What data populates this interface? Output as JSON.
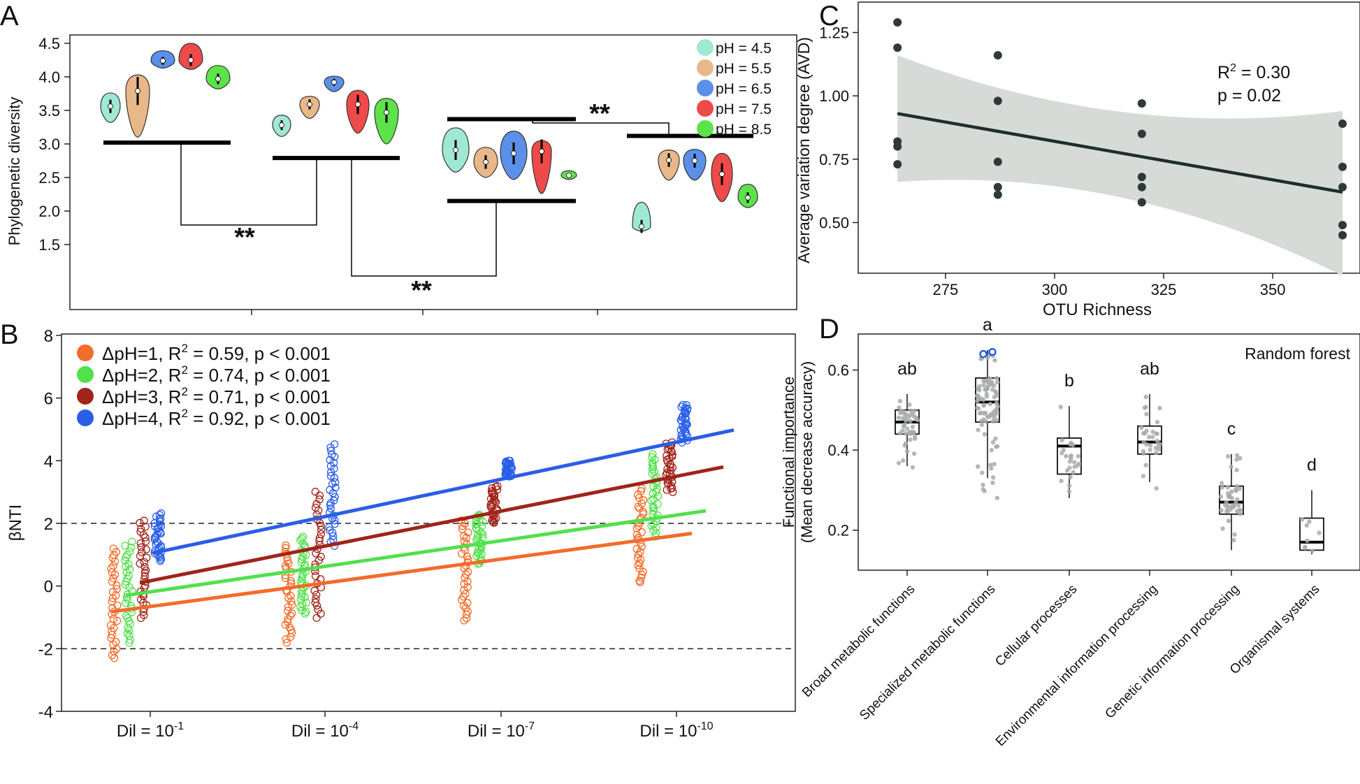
{
  "panels": {
    "A": {
      "label": "A"
    },
    "B": {
      "label": "B"
    },
    "C": {
      "label": "C"
    },
    "D": {
      "label": "D"
    }
  },
  "colors": {
    "ph45": "#9fe8d4",
    "ph55": "#e9b889",
    "ph65": "#5b8fe8",
    "ph75": "#ee4a4a",
    "ph85": "#5ce34a",
    "dph1": "#f26c2a",
    "dph2": "#52e04c",
    "dph3": "#a0241a",
    "dph4": "#2a5ee8",
    "ci_band": "#d7dbd7"
  },
  "chart_data": [
    {
      "id": "A",
      "type": "violin",
      "ylabel": "Phylogenetic diversity",
      "ylim": [
        1.4,
        4.6
      ],
      "yticks": [
        "1.5",
        "2.0",
        "2.5",
        "3.0",
        "3.5",
        "4.0",
        "4.5"
      ],
      "legend": [
        "pH = 4.5",
        "pH = 5.5",
        "pH = 6.5",
        "pH = 7.5",
        "pH = 8.5"
      ],
      "significance": [
        "**",
        "**",
        "**"
      ],
      "groups": [
        {
          "medians": [
            3.56,
            3.79,
            4.24,
            4.25,
            3.97
          ],
          "mins": [
            3.32,
            3.1,
            4.13,
            4.11,
            3.82
          ],
          "maxs": [
            3.76,
            4.03,
            4.39,
            4.5,
            4.17
          ],
          "bar": 3.02
        },
        {
          "medians": [
            3.28,
            3.59,
            3.92,
            3.59,
            3.47
          ],
          "mins": [
            3.11,
            3.38,
            3.78,
            3.16,
            3.0
          ],
          "maxs": [
            3.43,
            3.71,
            4.01,
            3.8,
            3.68
          ],
          "bar": 2.79
        },
        {
          "medians": [
            2.91,
            2.73,
            2.86,
            2.89,
            2.53
          ],
          "mins": [
            2.58,
            2.5,
            2.47,
            2.26,
            2.47
          ],
          "maxs": [
            3.24,
            2.95,
            3.19,
            3.05,
            2.6
          ],
          "bar_top": 3.37,
          "bar_bottom": 2.15
        },
        {
          "medians": [
            1.77,
            2.76,
            2.75,
            2.55,
            2.2
          ],
          "mins": [
            1.7,
            2.46,
            2.46,
            2.14,
            2.05
          ],
          "maxs": [
            2.13,
            2.91,
            2.92,
            2.86,
            2.4
          ],
          "bar": 3.12
        }
      ]
    },
    {
      "id": "B",
      "type": "scatter",
      "ylabel": "βNTI",
      "ylim": [
        -4,
        8
      ],
      "yticks": [
        "-4",
        "-2",
        "0",
        "2",
        "4",
        "6",
        "8"
      ],
      "categories": [
        {
          "base": "Dil = 10",
          "exp": "-1"
        },
        {
          "base": "Dil = 10",
          "exp": "-4"
        },
        {
          "base": "Dil = 10",
          "exp": "-7"
        },
        {
          "base": "Dil = 10",
          "exp": "-10"
        }
      ],
      "reference_lines": [
        -2,
        2
      ],
      "legend": [
        {
          "pre": "ΔpH=1, R",
          "sup": "2",
          "post": " = 0.59, p < 0.001"
        },
        {
          "pre": "ΔpH=2, R",
          "sup": "2",
          "post": " = 0.74, p < 0.001"
        },
        {
          "pre": "ΔpH=3, R",
          "sup": "2",
          "post": " = 0.71, p < 0.001"
        },
        {
          "pre": "ΔpH=4, R",
          "sup": "2",
          "post": " = 0.92, p < 0.001"
        }
      ],
      "series": [
        {
          "name": "ΔpH=1",
          "fit": [
            -0.82,
            1.68
          ],
          "ranges": [
            [
              -2.3,
              1.2
            ],
            [
              -1.8,
              1.3
            ],
            [
              -1.1,
              2.1
            ],
            [
              0.1,
              3.1
            ]
          ]
        },
        {
          "name": "ΔpH=2",
          "fit": [
            -0.3,
            2.4
          ],
          "ranges": [
            [
              -1.8,
              1.4
            ],
            [
              -0.9,
              1.6
            ],
            [
              0.7,
              2.3
            ],
            [
              1.6,
              4.2
            ]
          ]
        },
        {
          "name": "ΔpH=3",
          "fit": [
            0.1,
            3.8
          ],
          "ranges": [
            [
              -1.0,
              2.1
            ],
            [
              -1.0,
              3.0
            ],
            [
              2.0,
              3.2
            ],
            [
              3.0,
              4.6
            ]
          ]
        },
        {
          "name": "ΔpH=4",
          "fit": [
            1.05,
            4.98
          ],
          "ranges": [
            [
              0.8,
              2.3
            ],
            [
              1.3,
              4.5
            ],
            [
              3.5,
              4.0
            ],
            [
              4.6,
              5.8
            ]
          ]
        }
      ]
    },
    {
      "id": "C",
      "type": "scatter",
      "xlabel": "OTU Richness",
      "ylabel": "Average variation degree (AVD)",
      "xlim": [
        255,
        370
      ],
      "ylim": [
        0.3,
        1.37
      ],
      "xticks": [
        "275",
        "300",
        "325",
        "350"
      ],
      "yticks": [
        "0.50",
        "0.75",
        "1.00",
        "1.25"
      ],
      "x": [
        264,
        264,
        264,
        264,
        264,
        287,
        287,
        287,
        287,
        287,
        320,
        320,
        320,
        320,
        320,
        366,
        366,
        366,
        366,
        366
      ],
      "y": [
        1.29,
        1.19,
        0.82,
        0.8,
        0.73,
        1.16,
        0.98,
        0.74,
        0.64,
        0.61,
        0.97,
        0.85,
        0.68,
        0.64,
        0.58,
        0.89,
        0.72,
        0.64,
        0.49,
        0.45
      ],
      "fit": {
        "x": [
          264,
          366
        ],
        "y": [
          0.93,
          0.62
        ]
      },
      "ci": {
        "upper": [
          1.16,
          0.94
        ],
        "lower": [
          0.66,
          0.29
        ]
      },
      "annotation": {
        "r_pre": "R",
        "r_sup": "2",
        "r_post": " = 0.30",
        "p": "p = 0.02"
      }
    },
    {
      "id": "D",
      "type": "boxplot",
      "ylabel_line1": "Functional importance",
      "ylabel_line2": "(Mean decrease accuracy)",
      "ylim": [
        0.1,
        0.69
      ],
      "yticks": [
        "0.2",
        "0.4",
        "0.6"
      ],
      "annotation": "Random forest",
      "categories": [
        "Broad metabolic functions",
        "Specialized metabolic functions",
        "Cellular processes",
        "Environmental information processing",
        "Genetic information processing",
        "Organismal systems"
      ],
      "letters": [
        "ab",
        "a",
        "b",
        "ab",
        "c",
        "d"
      ],
      "boxes": [
        {
          "min": 0.36,
          "q1": 0.44,
          "median": 0.47,
          "q3": 0.5,
          "max": 0.54,
          "n": 45
        },
        {
          "min": 0.33,
          "q1": 0.47,
          "median": 0.52,
          "q3": 0.58,
          "max": 0.65,
          "n": 90
        },
        {
          "min": 0.28,
          "q1": 0.34,
          "median": 0.41,
          "q3": 0.43,
          "max": 0.51,
          "n": 25
        },
        {
          "min": 0.32,
          "q1": 0.39,
          "median": 0.42,
          "q3": 0.46,
          "max": 0.54,
          "n": 30
        },
        {
          "min": 0.15,
          "q1": 0.24,
          "median": 0.27,
          "q3": 0.31,
          "max": 0.39,
          "n": 45
        },
        {
          "min": 0.14,
          "q1": 0.15,
          "median": 0.17,
          "q3": 0.23,
          "max": 0.3,
          "n": 8
        }
      ],
      "outliers": [
        {
          "category": 1,
          "y": 0.64
        },
        {
          "category": 1,
          "y": 0.645
        }
      ]
    }
  ]
}
